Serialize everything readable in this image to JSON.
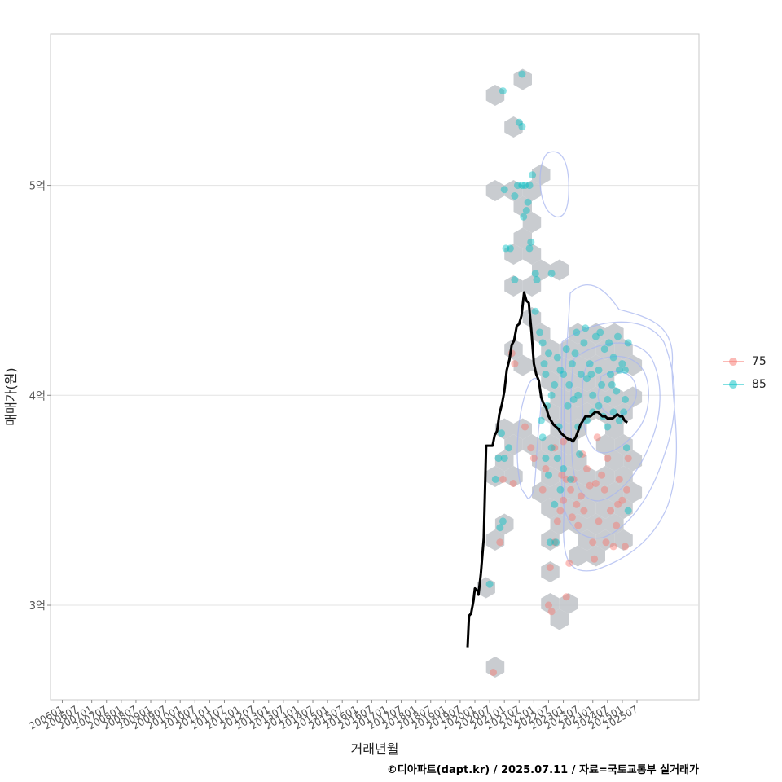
{
  "chart_data": {
    "type": "scatter",
    "title": "",
    "xlabel": "거래년월",
    "ylabel": "매매가(원)",
    "caption": "©디아파트(dapt.kr) / 2025.07.11 / 자료=국토교통부 실거래가",
    "xlim": [
      2005.6,
      2027.6
    ],
    "ylim": [
      2.55,
      5.72
    ],
    "ytick_values": [
      3,
      4,
      5
    ],
    "ytick_labels": [
      "3억",
      "4억",
      "5억"
    ],
    "xtick_labels": [
      "200601",
      "200607",
      "200701",
      "200707",
      "200801",
      "200807",
      "200901",
      "200907",
      "201001",
      "201007",
      "201101",
      "201107",
      "201201",
      "201207",
      "201301",
      "201307",
      "201401",
      "201407",
      "201501",
      "201507",
      "201601",
      "201607",
      "201701",
      "201707",
      "201801",
      "201807",
      "201901",
      "201907",
      "202001",
      "202007",
      "202101",
      "202107",
      "202201",
      "202207",
      "202301",
      "202307",
      "202401",
      "202407",
      "202501",
      "202507"
    ],
    "legend": {
      "position": "right",
      "entries": [
        {
          "label": "75",
          "color": "#F8766D"
        },
        {
          "label": "85",
          "color": "#00BFC4"
        }
      ]
    },
    "colors": {
      "s75": "#F8766D",
      "s85": "#00BFC4",
      "hex": "#BFC3C8",
      "contour": "#A9B7F0",
      "trend": "#000000"
    },
    "trend_line": {
      "name": "moving average",
      "points": [
        [
          2019.75,
          2.8
        ],
        [
          2019.8,
          2.95
        ],
        [
          2019.87,
          2.96
        ],
        [
          2019.95,
          3.02
        ],
        [
          2020.0,
          3.08
        ],
        [
          2020.08,
          3.07
        ],
        [
          2020.12,
          3.05
        ],
        [
          2020.2,
          3.15
        ],
        [
          2020.3,
          3.32
        ],
        [
          2020.38,
          3.76
        ],
        [
          2020.5,
          3.76
        ],
        [
          2020.6,
          3.76
        ],
        [
          2020.67,
          3.81
        ],
        [
          2020.75,
          3.83
        ],
        [
          2020.83,
          3.91
        ],
        [
          2020.92,
          3.96
        ],
        [
          2021.0,
          4.02
        ],
        [
          2021.08,
          4.12
        ],
        [
          2021.17,
          4.17
        ],
        [
          2021.25,
          4.24
        ],
        [
          2021.33,
          4.26
        ],
        [
          2021.42,
          4.33
        ],
        [
          2021.5,
          4.34
        ],
        [
          2021.58,
          4.38
        ],
        [
          2021.67,
          4.49
        ],
        [
          2021.75,
          4.45
        ],
        [
          2021.83,
          4.44
        ],
        [
          2021.92,
          4.3
        ],
        [
          2022.0,
          4.15
        ],
        [
          2022.08,
          4.1
        ],
        [
          2022.17,
          4.07
        ],
        [
          2022.25,
          3.99
        ],
        [
          2022.33,
          3.96
        ],
        [
          2022.42,
          3.94
        ],
        [
          2022.5,
          3.9
        ],
        [
          2022.58,
          3.88
        ],
        [
          2022.67,
          3.86
        ],
        [
          2022.75,
          3.85
        ],
        [
          2022.83,
          3.84
        ],
        [
          2022.92,
          3.82
        ],
        [
          2023.0,
          3.81
        ],
        [
          2023.08,
          3.8
        ],
        [
          2023.17,
          3.79
        ],
        [
          2023.25,
          3.79
        ],
        [
          2023.33,
          3.78
        ],
        [
          2023.42,
          3.8
        ],
        [
          2023.5,
          3.83
        ],
        [
          2023.58,
          3.86
        ],
        [
          2023.67,
          3.88
        ],
        [
          2023.75,
          3.9
        ],
        [
          2023.83,
          3.9
        ],
        [
          2023.92,
          3.9
        ],
        [
          2024.0,
          3.91
        ],
        [
          2024.08,
          3.92
        ],
        [
          2024.17,
          3.92
        ],
        [
          2024.25,
          3.91
        ],
        [
          2024.33,
          3.9
        ],
        [
          2024.42,
          3.9
        ],
        [
          2024.5,
          3.89
        ],
        [
          2024.58,
          3.89
        ],
        [
          2024.67,
          3.89
        ],
        [
          2024.75,
          3.9
        ],
        [
          2024.83,
          3.91
        ],
        [
          2024.92,
          3.9
        ],
        [
          2025.0,
          3.9
        ],
        [
          2025.08,
          3.88
        ],
        [
          2025.17,
          3.87
        ]
      ]
    },
    "series": [
      {
        "name": "75",
        "points": [
          [
            2020.62,
            2.68
          ],
          [
            2020.85,
            3.3
          ],
          [
            2020.95,
            3.6
          ],
          [
            2021.3,
            3.58
          ],
          [
            2021.25,
            4.2
          ],
          [
            2021.35,
            4.15
          ],
          [
            2021.7,
            3.85
          ],
          [
            2021.9,
            3.75
          ],
          [
            2022.0,
            3.7
          ],
          [
            2022.3,
            3.55
          ],
          [
            2022.4,
            3.65
          ],
          [
            2022.5,
            3.0
          ],
          [
            2022.6,
            2.97
          ],
          [
            2022.55,
            3.18
          ],
          [
            2022.7,
            3.3
          ],
          [
            2022.8,
            3.4
          ],
          [
            2022.9,
            3.45
          ],
          [
            2023.0,
            3.5
          ],
          [
            2023.1,
            3.04
          ],
          [
            2023.2,
            3.2
          ],
          [
            2023.25,
            3.55
          ],
          [
            2023.35,
            3.6
          ],
          [
            2023.45,
            3.48
          ],
          [
            2023.5,
            3.38
          ],
          [
            2023.6,
            3.52
          ],
          [
            2023.7,
            3.45
          ],
          [
            2023.8,
            3.65
          ],
          [
            2023.9,
            3.57
          ],
          [
            2024.0,
            3.3
          ],
          [
            2024.05,
            3.22
          ],
          [
            2024.1,
            3.58
          ],
          [
            2024.2,
            3.4
          ],
          [
            2024.3,
            3.62
          ],
          [
            2024.4,
            3.55
          ],
          [
            2024.5,
            3.7
          ],
          [
            2024.6,
            3.45
          ],
          [
            2024.7,
            3.28
          ],
          [
            2024.8,
            3.38
          ],
          [
            2024.9,
            3.6
          ],
          [
            2025.0,
            3.5
          ],
          [
            2025.1,
            3.28
          ],
          [
            2025.15,
            3.55
          ],
          [
            2025.2,
            3.7
          ],
          [
            2023.0,
            3.78
          ],
          [
            2023.1,
            3.6
          ],
          [
            2022.7,
            3.75
          ],
          [
            2022.95,
            3.62
          ],
          [
            2023.3,
            3.42
          ],
          [
            2023.65,
            3.72
          ],
          [
            2024.15,
            3.8
          ],
          [
            2024.45,
            3.3
          ],
          [
            2024.85,
            3.48
          ]
        ]
      },
      {
        "name": "85",
        "points": [
          [
            2020.5,
            3.1
          ],
          [
            2020.7,
            3.6
          ],
          [
            2020.8,
            3.7
          ],
          [
            2020.9,
            3.82
          ],
          [
            2020.95,
            3.4
          ],
          [
            2020.85,
            3.37
          ],
          [
            2021.0,
            3.7
          ],
          [
            2021.15,
            3.75
          ],
          [
            2020.95,
            5.45
          ],
          [
            2021.6,
            5.53
          ],
          [
            2021.5,
            5.3
          ],
          [
            2021.6,
            5.28
          ],
          [
            2021.0,
            4.98
          ],
          [
            2021.35,
            4.95
          ],
          [
            2021.45,
            5.0
          ],
          [
            2021.6,
            5.0
          ],
          [
            2021.7,
            5.0
          ],
          [
            2021.8,
            4.92
          ],
          [
            2021.65,
            4.85
          ],
          [
            2021.85,
            5.0
          ],
          [
            2021.75,
            4.88
          ],
          [
            2021.95,
            5.05
          ],
          [
            2021.05,
            4.7
          ],
          [
            2021.2,
            4.7
          ],
          [
            2021.85,
            4.7
          ],
          [
            2021.9,
            4.73
          ],
          [
            2021.35,
            4.55
          ],
          [
            2022.05,
            4.58
          ],
          [
            2022.1,
            4.55
          ],
          [
            2022.6,
            4.58
          ],
          [
            2022.05,
            4.4
          ],
          [
            2022.2,
            4.3
          ],
          [
            2022.3,
            4.25
          ],
          [
            2022.35,
            4.15
          ],
          [
            2022.4,
            4.1
          ],
          [
            2022.5,
            4.2
          ],
          [
            2022.6,
            4.0
          ],
          [
            2022.7,
            4.05
          ],
          [
            2022.8,
            4.18
          ],
          [
            2022.9,
            4.12
          ],
          [
            2023.0,
            4.1
          ],
          [
            2023.1,
            4.22
          ],
          [
            2023.2,
            4.05
          ],
          [
            2023.3,
            4.15
          ],
          [
            2023.4,
            4.2
          ],
          [
            2023.5,
            4.0
          ],
          [
            2023.6,
            4.1
          ],
          [
            2023.7,
            4.25
          ],
          [
            2023.8,
            4.08
          ],
          [
            2023.9,
            4.15
          ],
          [
            2024.0,
            4.0
          ],
          [
            2024.1,
            4.28
          ],
          [
            2024.2,
            4.12
          ],
          [
            2024.3,
            4.05
          ],
          [
            2024.4,
            4.22
          ],
          [
            2024.5,
            3.98
          ],
          [
            2024.6,
            4.1
          ],
          [
            2024.7,
            4.18
          ],
          [
            2024.8,
            4.02
          ],
          [
            2024.9,
            4.12
          ],
          [
            2025.0,
            4.15
          ],
          [
            2025.1,
            3.98
          ],
          [
            2025.2,
            4.25
          ],
          [
            2025.15,
            3.75
          ],
          [
            2025.2,
            3.45
          ],
          [
            2022.3,
            3.8
          ],
          [
            2022.4,
            3.7
          ],
          [
            2022.5,
            3.62
          ],
          [
            2022.55,
            3.3
          ],
          [
            2022.6,
            3.75
          ],
          [
            2022.7,
            3.48
          ],
          [
            2022.75,
            3.3
          ],
          [
            2022.8,
            3.7
          ],
          [
            2022.9,
            3.55
          ],
          [
            2023.0,
            3.65
          ],
          [
            2023.5,
            3.85
          ],
          [
            2023.8,
            3.88
          ],
          [
            2024.0,
            3.92
          ],
          [
            2024.2,
            3.95
          ],
          [
            2024.5,
            3.85
          ],
          [
            2024.7,
            3.92
          ],
          [
            2024.9,
            3.88
          ],
          [
            2025.05,
            3.92
          ],
          [
            2022.25,
            3.88
          ],
          [
            2022.45,
            3.95
          ],
          [
            2023.15,
            3.95
          ],
          [
            2023.45,
            4.3
          ],
          [
            2023.75,
            4.32
          ],
          [
            2024.25,
            4.3
          ],
          [
            2024.55,
            4.25
          ],
          [
            2024.85,
            4.28
          ],
          [
            2025.1,
            4.12
          ],
          [
            2023.35,
            3.98
          ],
          [
            2023.95,
            4.1
          ],
          [
            2024.35,
            3.9
          ],
          [
            2024.65,
            4.05
          ],
          [
            2022.85,
            3.85
          ],
          [
            2023.25,
            3.6
          ],
          [
            2023.55,
            3.72
          ]
        ]
      }
    ]
  }
}
